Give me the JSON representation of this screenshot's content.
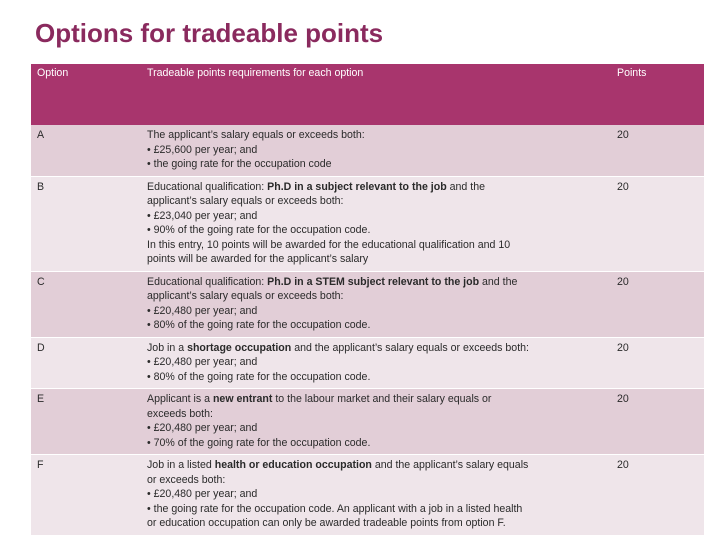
{
  "title": "Options for tradeable points",
  "table": {
    "headers": {
      "option": "Option",
      "requirements": "Tradeable points requirements for each option",
      "points": "Points"
    },
    "rows": [
      {
        "option": "A",
        "points": "20",
        "lines": [
          {
            "pre": "The applicant’s salary equals or exceeds both:",
            "bold": "",
            "post": ""
          },
          {
            "pre": "• £25,600 per year; and",
            "bold": "",
            "post": ""
          },
          {
            "pre": "• the going rate for the occupation code",
            "bold": "",
            "post": ""
          }
        ]
      },
      {
        "option": "B",
        "points": "20",
        "lines": [
          {
            "pre": "Educational qualification: ",
            "bold": "Ph.D in a subject relevant to the job",
            "post": " and the"
          },
          {
            "pre": "applicant’s salary equals or exceeds both:",
            "bold": "",
            "post": ""
          },
          {
            "pre": "• £23,040 per year; and",
            "bold": "",
            "post": ""
          },
          {
            "pre": "• 90% of the going rate for the occupation code.",
            "bold": "",
            "post": ""
          },
          {
            "pre": "In this entry, 10 points will be awarded for the educational qualification and 10",
            "bold": "",
            "post": ""
          },
          {
            "pre": "points will be awarded for the applicant’s salary",
            "bold": "",
            "post": ""
          }
        ]
      },
      {
        "option": "C",
        "points": "20",
        "lines": [
          {
            "pre": "Educational qualification: ",
            "bold": "Ph.D in a STEM subject relevant to the job",
            "post": " and the"
          },
          {
            "pre": "applicant’s salary equals or exceeds both:",
            "bold": "",
            "post": ""
          },
          {
            "pre": "• £20,480 per year; and",
            "bold": "",
            "post": ""
          },
          {
            "pre": "• 80% of the going rate for the occupation code.",
            "bold": "",
            "post": ""
          }
        ]
      },
      {
        "option": "D",
        "points": "20",
        "lines": [
          {
            "pre": "Job in a ",
            "bold": "shortage occupation",
            "post": " and the applicant’s salary equals or exceeds both:"
          },
          {
            "pre": "• £20,480 per year; and",
            "bold": "",
            "post": ""
          },
          {
            "pre": "• 80% of the going rate for the occupation code.",
            "bold": "",
            "post": ""
          }
        ]
      },
      {
        "option": "E",
        "points": "20",
        "lines": [
          {
            "pre": "Applicant is a ",
            "bold": "new entrant",
            "post": " to the labour market and their salary equals or"
          },
          {
            "pre": "exceeds both:",
            "bold": "",
            "post": ""
          },
          {
            "pre": "• £20,480 per year; and",
            "bold": "",
            "post": ""
          },
          {
            "pre": "• 70% of the going rate for the occupation code.",
            "bold": "",
            "post": ""
          }
        ]
      },
      {
        "option": "F",
        "points": "20",
        "lines": [
          {
            "pre": "Job in a listed ",
            "bold": "health or education occupation",
            "post": " and the applicant’s salary equals"
          },
          {
            "pre": "or exceeds both:",
            "bold": "",
            "post": ""
          },
          {
            "pre": "• £20,480 per year; and",
            "bold": "",
            "post": ""
          },
          {
            "pre": "• the going rate for the occupation code. An applicant with a job in a listed health",
            "bold": "",
            "post": ""
          },
          {
            "pre": "or education occupation can only be awarded tradeable points from option F.",
            "bold": "",
            "post": ""
          }
        ]
      }
    ]
  },
  "colors": {
    "title": "#8a2a5e",
    "header_bg": "#a8356d",
    "row_dark": "#e2ced7",
    "row_light": "#efe5ea"
  }
}
